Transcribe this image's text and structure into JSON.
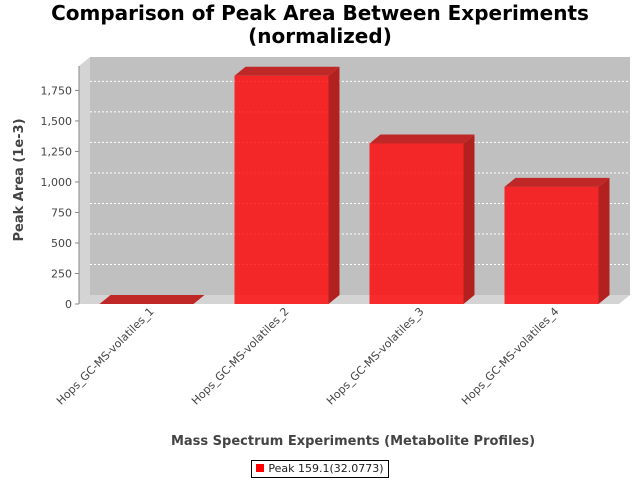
{
  "chart_data": {
    "type": "bar",
    "title_lines": [
      "Comparison of Peak Area Between Experiments",
      "(normalized)"
    ],
    "xlabel": "Mass Spectrum Experiments (Metabolite Profiles)",
    "ylabel": "Peak Area (1e-3)",
    "categories": [
      "Hops_GC-MS-volatiles_1",
      "Hops_GC-MS-volatiles_2",
      "Hops_GC-MS-volatiles_3",
      "Hops_GC-MS-volatiles_4"
    ],
    "series": [
      {
        "name": "Peak 159.1(32.0773)",
        "values": [
          0,
          1870,
          1315,
          960
        ]
      }
    ],
    "ylim": [
      0,
      1950
    ],
    "yticks": [
      0,
      250,
      500,
      750,
      1000,
      1250,
      1500,
      1750
    ],
    "ytick_labels": [
      "0",
      "250",
      "500",
      "750",
      "1,000",
      "1,250",
      "1,500",
      "1,750"
    ],
    "grid": true,
    "style": "3d",
    "legend_position": "bottom",
    "colors": {
      "bar": "#ff0000",
      "plot_background": "#c0c0c0",
      "wall": "#d4d4d4"
    }
  }
}
